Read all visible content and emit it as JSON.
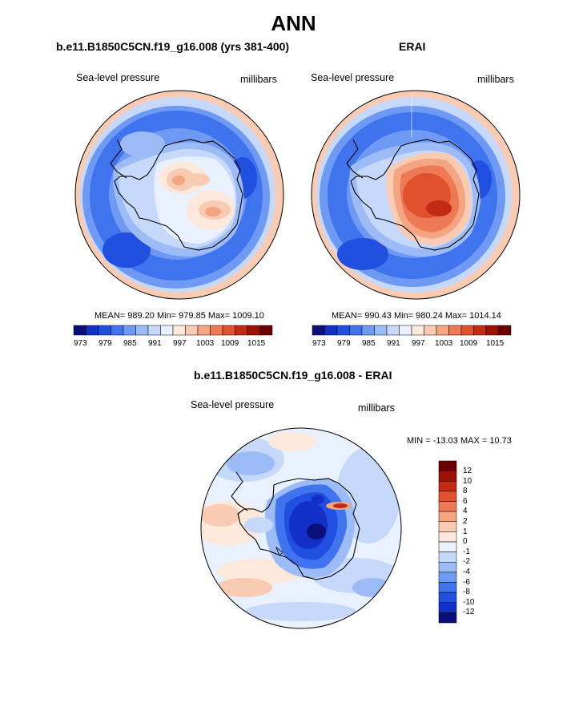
{
  "figure_title": "ANN",
  "colors": {
    "scale_abs": [
      "#0a0f7a",
      "#1230c8",
      "#2150e0",
      "#3f74ee",
      "#6f9af4",
      "#9dbcf7",
      "#c6d9fb",
      "#e8f1fd",
      "#fde8dc",
      "#f9cbb2",
      "#f4a582",
      "#ed7a55",
      "#e0522e",
      "#c32a14",
      "#9c1006",
      "#6b0000"
    ],
    "scale_diff": [
      "#0a0f7a",
      "#1230c8",
      "#2150e0",
      "#3f74ee",
      "#6f9af4",
      "#9dbcf7",
      "#c6d9fb",
      "#e8f1fd",
      "#fde8dc",
      "#f9cbb2",
      "#f4a582",
      "#ed7a55",
      "#e0522e",
      "#c32a14",
      "#9c1006",
      "#6b0000"
    ]
  },
  "panels": [
    {
      "title": "b.e11.B1850C5CN.f19_g16.008 (yrs 381-400)",
      "variable": "Sea-level pressure",
      "units": "millibars",
      "stats": "MEAN= 989.20  Min= 979.85  Max= 1009.10",
      "colorbar_ticks": [
        "973",
        "979",
        "985",
        "991",
        "997",
        "1003",
        "1009",
        "1015"
      ]
    },
    {
      "title": "ERAI",
      "variable": "Sea-level pressure",
      "units": "millibars",
      "stats": "MEAN= 990.43  Min= 980.24  Max= 1014.14",
      "colorbar_ticks": [
        "973",
        "979",
        "985",
        "991",
        "997",
        "1003",
        "1009",
        "1015"
      ]
    },
    {
      "title": "b.e11.B1850C5CN.f19_g16.008 - ERAI",
      "variable": "Sea-level pressure",
      "units": "millibars",
      "stats": "MIN = -13.03 MAX =  10.73",
      "colorbar_ticks": [
        "12",
        "10",
        "8",
        "6",
        "4",
        "2",
        "1",
        "0",
        "-1",
        "-2",
        "-4",
        "-6",
        "-8",
        "-10",
        "-12"
      ]
    }
  ]
}
